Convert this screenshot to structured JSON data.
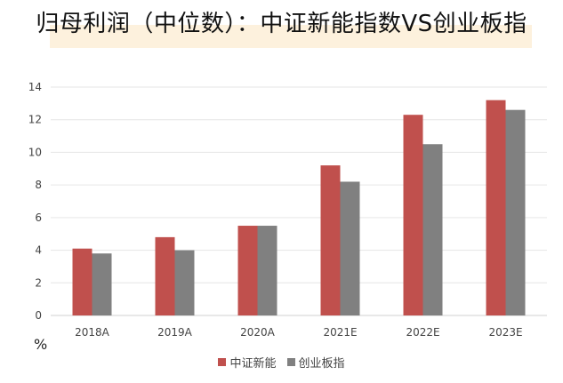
{
  "chart_data": {
    "type": "bar",
    "title": "归母利润（中位数）：中证新能指数VS创业板指",
    "unit_label": "%",
    "categories": [
      "2018A",
      "2019A",
      "2020A",
      "2021E",
      "2022E",
      "2023E"
    ],
    "series": [
      {
        "name": "中证新能",
        "color": "#c0504d",
        "values": [
          4.1,
          4.8,
          5.5,
          9.2,
          12.3,
          13.2
        ]
      },
      {
        "name": "创业板指",
        "color": "#808080",
        "values": [
          3.8,
          4.0,
          5.5,
          8.2,
          10.5,
          12.6
        ]
      }
    ],
    "yticks": [
      "0",
      "2",
      "4",
      "6",
      "8",
      "10",
      "12",
      "14"
    ],
    "ylim": [
      0,
      14
    ],
    "grid": true,
    "legend_position": "bottom"
  }
}
